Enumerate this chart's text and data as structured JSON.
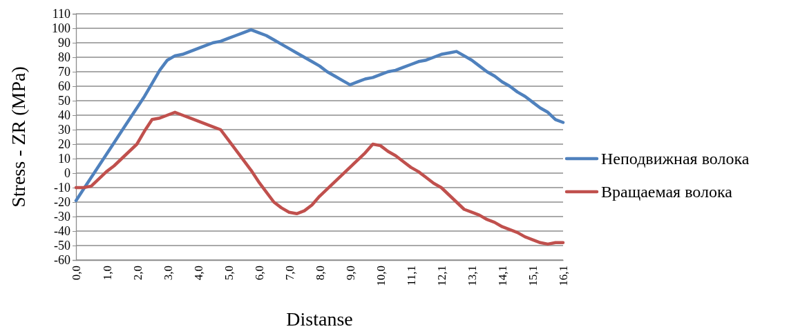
{
  "chart_data": {
    "type": "line",
    "xlabel": "Distanse",
    "ylabel": "Stress - ZR (MPa)",
    "categories": [
      "0,0",
      null,
      null,
      null,
      "1,0",
      null,
      null,
      null,
      "2,0",
      null,
      null,
      null,
      "3,0",
      null,
      null,
      null,
      "4,0",
      null,
      null,
      null,
      "5,0",
      null,
      null,
      null,
      "6,0",
      null,
      null,
      null,
      "7,0",
      null,
      null,
      null,
      "8,0",
      null,
      null,
      null,
      "9,0",
      null,
      null,
      null,
      "10,0",
      null,
      null,
      null,
      "11,1",
      null,
      null,
      null,
      "12,1",
      null,
      null,
      null,
      "13,1",
      null,
      null,
      null,
      "14,1",
      null,
      null,
      null,
      "15,1",
      null,
      null,
      null,
      "16,1"
    ],
    "series": [
      {
        "name": "Неподвижная волока",
        "color": "#4f81bd",
        "values": [
          -19,
          -11,
          -3,
          5,
          13,
          21,
          29,
          37,
          45,
          53,
          62,
          71,
          78,
          81,
          82,
          84,
          86,
          88,
          90,
          91,
          93,
          95,
          97,
          99,
          97,
          95,
          92,
          89,
          86,
          83,
          80,
          77,
          74,
          70,
          67,
          64,
          61,
          63,
          65,
          66,
          68,
          70,
          71,
          73,
          75,
          77,
          78,
          80,
          82,
          83,
          84,
          81,
          78,
          74,
          70,
          67,
          63,
          60,
          56,
          53,
          49,
          45,
          42,
          37,
          35
        ]
      },
      {
        "name": "Вращаемая волока",
        "color": "#c0504d",
        "values": [
          -10,
          -10,
          -9,
          -4,
          1,
          5,
          10,
          15,
          20,
          29,
          37,
          38,
          40,
          42,
          40,
          38,
          36,
          34,
          32,
          30,
          23,
          16,
          9,
          2,
          -6,
          -13,
          -20,
          -24,
          -27,
          -28,
          -26,
          -22,
          -16,
          -11,
          -6,
          -1,
          4,
          9,
          14,
          20,
          19,
          15,
          12,
          8,
          4,
          1,
          -3,
          -7,
          -10,
          -15,
          -20,
          -25,
          -27,
          -29,
          -32,
          -34,
          -37,
          -39,
          -41,
          -44,
          -46,
          -48,
          -49,
          -48,
          -48
        ]
      }
    ],
    "ylim": [
      -60,
      110
    ],
    "yticks": [
      -60,
      -50,
      -40,
      -30,
      -20,
      -10,
      0,
      10,
      20,
      30,
      40,
      50,
      60,
      70,
      80,
      90,
      100,
      110
    ],
    "grid": "y",
    "legend": "right",
    "line_style": "solid",
    "marker": "none"
  }
}
